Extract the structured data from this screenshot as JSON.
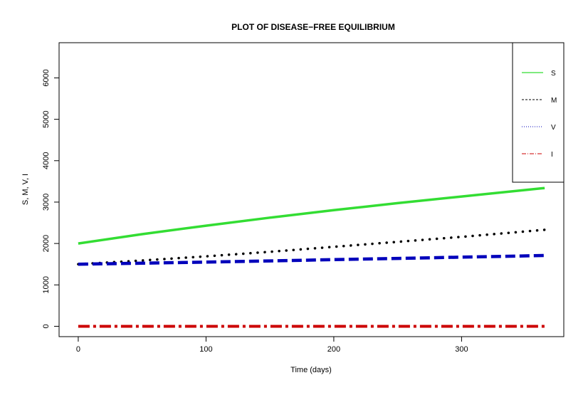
{
  "chart_data": {
    "type": "line",
    "title": "PLOT OF DISEASE−FREE EQUILIBRIUM",
    "xlabel": "Time (days)",
    "ylabel": "S, M, V, I",
    "xlim": [
      -15,
      380
    ],
    "ylim": [
      -250,
      6850
    ],
    "xticks": [
      0,
      100,
      200,
      300
    ],
    "yticks": [
      0,
      1000,
      2000,
      3000,
      4000,
      5000,
      6000
    ],
    "grid": false,
    "legend_position": "top-right",
    "series": [
      {
        "name": "S",
        "color": "#33dd33",
        "style": "solid",
        "x": [
          0,
          50,
          100,
          150,
          200,
          250,
          300,
          365
        ],
        "values": [
          2000,
          2225,
          2430,
          2625,
          2805,
          2975,
          3135,
          3340
        ]
      },
      {
        "name": "M",
        "color": "#000000",
        "style": "dashed",
        "x": [
          0,
          50,
          100,
          150,
          200,
          250,
          300,
          365
        ],
        "values": [
          1500,
          1590,
          1690,
          1800,
          1920,
          2040,
          2160,
          2330
        ]
      },
      {
        "name": "V",
        "color": "#0000bb",
        "style": "dotted",
        "x": [
          0,
          50,
          100,
          150,
          200,
          250,
          300,
          365
        ],
        "values": [
          1500,
          1525,
          1550,
          1580,
          1610,
          1640,
          1670,
          1710
        ]
      },
      {
        "name": "I",
        "color": "#cc0000",
        "style": "dotdash",
        "x": [
          0,
          365
        ],
        "values": [
          0,
          0
        ]
      }
    ]
  }
}
